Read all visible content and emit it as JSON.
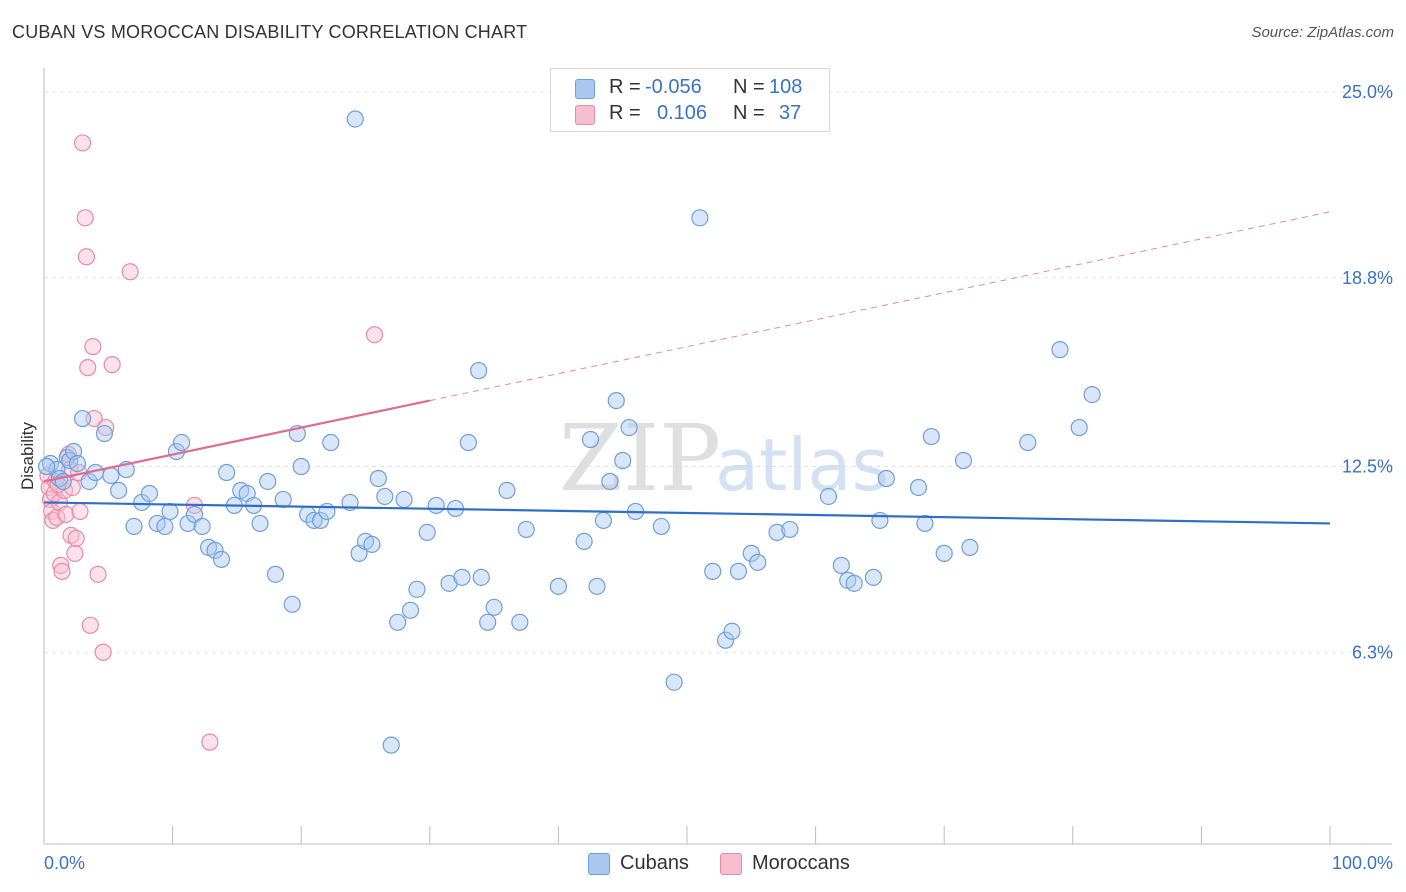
{
  "header": {
    "title": "CUBAN VS MOROCCAN DISABILITY CORRELATION CHART",
    "source": "Source: ZipAtlas.com"
  },
  "colors": {
    "blue_fill": "#a9c8f0",
    "blue_stroke": "#6f9fd8",
    "blue_line": "#2f6fc9",
    "pink_fill": "#f6bfd0",
    "pink_stroke": "#e98aa8",
    "pink_line": "#e06a94",
    "axis_text": "#3a72c6",
    "grid": "#e3e3e3"
  },
  "legend": {
    "rows": [
      {
        "r_label": "R =",
        "r_value": "-0.056",
        "n_label": "N =",
        "n_value": "108"
      },
      {
        "r_label": "R =",
        "r_value": "0.106",
        "n_label": "N =",
        "n_value": "37"
      }
    ]
  },
  "bottom_legend": [
    "Cubans",
    "Moroccans"
  ],
  "watermark": {
    "zip": "ZIP",
    "atlas": "atlas"
  },
  "chart_data": {
    "type": "scatter",
    "title": "CUBAN VS MOROCCAN DISABILITY CORRELATION CHART",
    "ylabel": "Disability",
    "xlabel": "",
    "x_tick_labels": [
      "0.0%",
      "100.0%"
    ],
    "y_tick_labels": [
      "25.0%",
      "18.8%",
      "12.5%",
      "6.3%"
    ],
    "y_ticks": [
      25.0,
      18.8,
      12.5,
      6.3
    ],
    "xlim": [
      0,
      100
    ],
    "ylim": [
      0,
      26
    ],
    "grid": true,
    "series": [
      {
        "name": "Cubans",
        "r": -0.056,
        "n": 108,
        "trend": {
          "x": [
            0,
            100
          ],
          "y": [
            11.3,
            10.6
          ],
          "dashed_from": null
        },
        "points": [
          [
            0.5,
            12.6
          ],
          [
            1.0,
            12.4
          ],
          [
            1.2,
            12.1
          ],
          [
            1.5,
            12.0
          ],
          [
            1.8,
            12.8
          ],
          [
            2.0,
            12.7
          ],
          [
            2.3,
            13.0
          ],
          [
            2.6,
            12.6
          ],
          [
            3.0,
            14.1
          ],
          [
            3.5,
            12.0
          ],
          [
            4.0,
            12.3
          ],
          [
            4.7,
            13.6
          ],
          [
            5.2,
            12.2
          ],
          [
            5.8,
            11.7
          ],
          [
            6.4,
            12.4
          ],
          [
            7.0,
            10.5
          ],
          [
            7.6,
            11.3
          ],
          [
            8.2,
            11.6
          ],
          [
            8.8,
            10.6
          ],
          [
            9.4,
            10.5
          ],
          [
            9.8,
            11.0
          ],
          [
            10.3,
            13.0
          ],
          [
            10.7,
            13.3
          ],
          [
            11.2,
            10.6
          ],
          [
            11.7,
            10.9
          ],
          [
            12.3,
            10.5
          ],
          [
            12.8,
            9.8
          ],
          [
            13.3,
            9.7
          ],
          [
            13.8,
            9.4
          ],
          [
            14.2,
            12.3
          ],
          [
            14.8,
            11.2
          ],
          [
            15.3,
            11.7
          ],
          [
            15.8,
            11.6
          ],
          [
            16.3,
            11.2
          ],
          [
            16.8,
            10.6
          ],
          [
            17.4,
            12.0
          ],
          [
            18.0,
            8.9
          ],
          [
            18.6,
            11.4
          ],
          [
            19.3,
            7.9
          ],
          [
            19.7,
            13.6
          ],
          [
            20.0,
            12.5
          ],
          [
            20.5,
            10.9
          ],
          [
            21.0,
            10.7
          ],
          [
            21.5,
            10.7
          ],
          [
            22.0,
            11.0
          ],
          [
            22.3,
            13.3
          ],
          [
            23.8,
            11.3
          ],
          [
            24.2,
            24.1
          ],
          [
            24.5,
            9.6
          ],
          [
            25.0,
            10.0
          ],
          [
            25.5,
            9.9
          ],
          [
            26.0,
            12.1
          ],
          [
            26.5,
            11.5
          ],
          [
            27.0,
            3.2
          ],
          [
            27.5,
            7.3
          ],
          [
            28.0,
            11.4
          ],
          [
            28.5,
            7.7
          ],
          [
            29.0,
            8.4
          ],
          [
            29.8,
            10.3
          ],
          [
            30.5,
            11.2
          ],
          [
            31.5,
            8.6
          ],
          [
            32.0,
            11.1
          ],
          [
            32.5,
            8.8
          ],
          [
            33.0,
            13.3
          ],
          [
            33.8,
            15.7
          ],
          [
            34.0,
            8.8
          ],
          [
            34.5,
            7.3
          ],
          [
            35.0,
            7.8
          ],
          [
            36.0,
            11.7
          ],
          [
            37.0,
            7.3
          ],
          [
            37.5,
            10.4
          ],
          [
            40.0,
            8.5
          ],
          [
            42.0,
            10.0
          ],
          [
            42.5,
            13.4
          ],
          [
            43.0,
            8.5
          ],
          [
            43.5,
            10.7
          ],
          [
            44.0,
            12.0
          ],
          [
            44.5,
            14.7
          ],
          [
            45.0,
            12.7
          ],
          [
            45.5,
            13.8
          ],
          [
            46.0,
            11.0
          ],
          [
            48.0,
            10.5
          ],
          [
            49.0,
            5.3
          ],
          [
            51.0,
            20.8
          ],
          [
            52.0,
            9.0
          ],
          [
            53.0,
            6.7
          ],
          [
            53.5,
            7.0
          ],
          [
            54.0,
            9.0
          ],
          [
            55.0,
            9.6
          ],
          [
            55.5,
            9.3
          ],
          [
            57.0,
            10.3
          ],
          [
            58.0,
            10.4
          ],
          [
            61.0,
            11.5
          ],
          [
            62.0,
            9.2
          ],
          [
            62.5,
            8.7
          ],
          [
            63.0,
            8.6
          ],
          [
            64.5,
            8.8
          ],
          [
            65.0,
            10.7
          ],
          [
            65.5,
            12.1
          ],
          [
            68.0,
            11.8
          ],
          [
            68.5,
            10.6
          ],
          [
            69.0,
            13.5
          ],
          [
            70.0,
            9.6
          ],
          [
            71.5,
            12.7
          ],
          [
            72.0,
            9.8
          ],
          [
            76.5,
            13.3
          ],
          [
            79.0,
            16.4
          ],
          [
            80.5,
            13.8
          ],
          [
            81.5,
            14.9
          ],
          [
            0.2,
            12.5
          ]
        ]
      },
      {
        "name": "Moroccans",
        "r": 0.106,
        "n": 37,
        "trend": {
          "x": [
            0,
            100
          ],
          "y": [
            12.0,
            21.0
          ],
          "solid_to_x": 30
        },
        "points": [
          [
            0.3,
            12.2
          ],
          [
            0.4,
            11.8
          ],
          [
            0.5,
            11.4
          ],
          [
            0.6,
            11.0
          ],
          [
            0.7,
            10.7
          ],
          [
            0.8,
            11.6
          ],
          [
            0.9,
            12.0
          ],
          [
            1.0,
            10.8
          ],
          [
            1.2,
            11.3
          ],
          [
            1.3,
            9.2
          ],
          [
            1.4,
            9.0
          ],
          [
            1.6,
            11.7
          ],
          [
            1.7,
            10.9
          ],
          [
            1.9,
            12.9
          ],
          [
            2.0,
            12.4
          ],
          [
            2.1,
            10.2
          ],
          [
            2.2,
            11.8
          ],
          [
            2.4,
            9.6
          ],
          [
            2.5,
            10.1
          ],
          [
            2.7,
            12.3
          ],
          [
            2.8,
            11.0
          ],
          [
            3.0,
            23.3
          ],
          [
            3.2,
            20.8
          ],
          [
            3.3,
            19.5
          ],
          [
            3.4,
            15.8
          ],
          [
            3.6,
            7.2
          ],
          [
            3.8,
            16.5
          ],
          [
            3.9,
            14.1
          ],
          [
            4.2,
            8.9
          ],
          [
            4.6,
            6.3
          ],
          [
            4.8,
            13.8
          ],
          [
            5.3,
            15.9
          ],
          [
            6.7,
            19.0
          ],
          [
            11.7,
            11.2
          ],
          [
            12.9,
            3.3
          ],
          [
            25.7,
            16.9
          ],
          [
            1.1,
            11.9
          ]
        ]
      }
    ]
  }
}
